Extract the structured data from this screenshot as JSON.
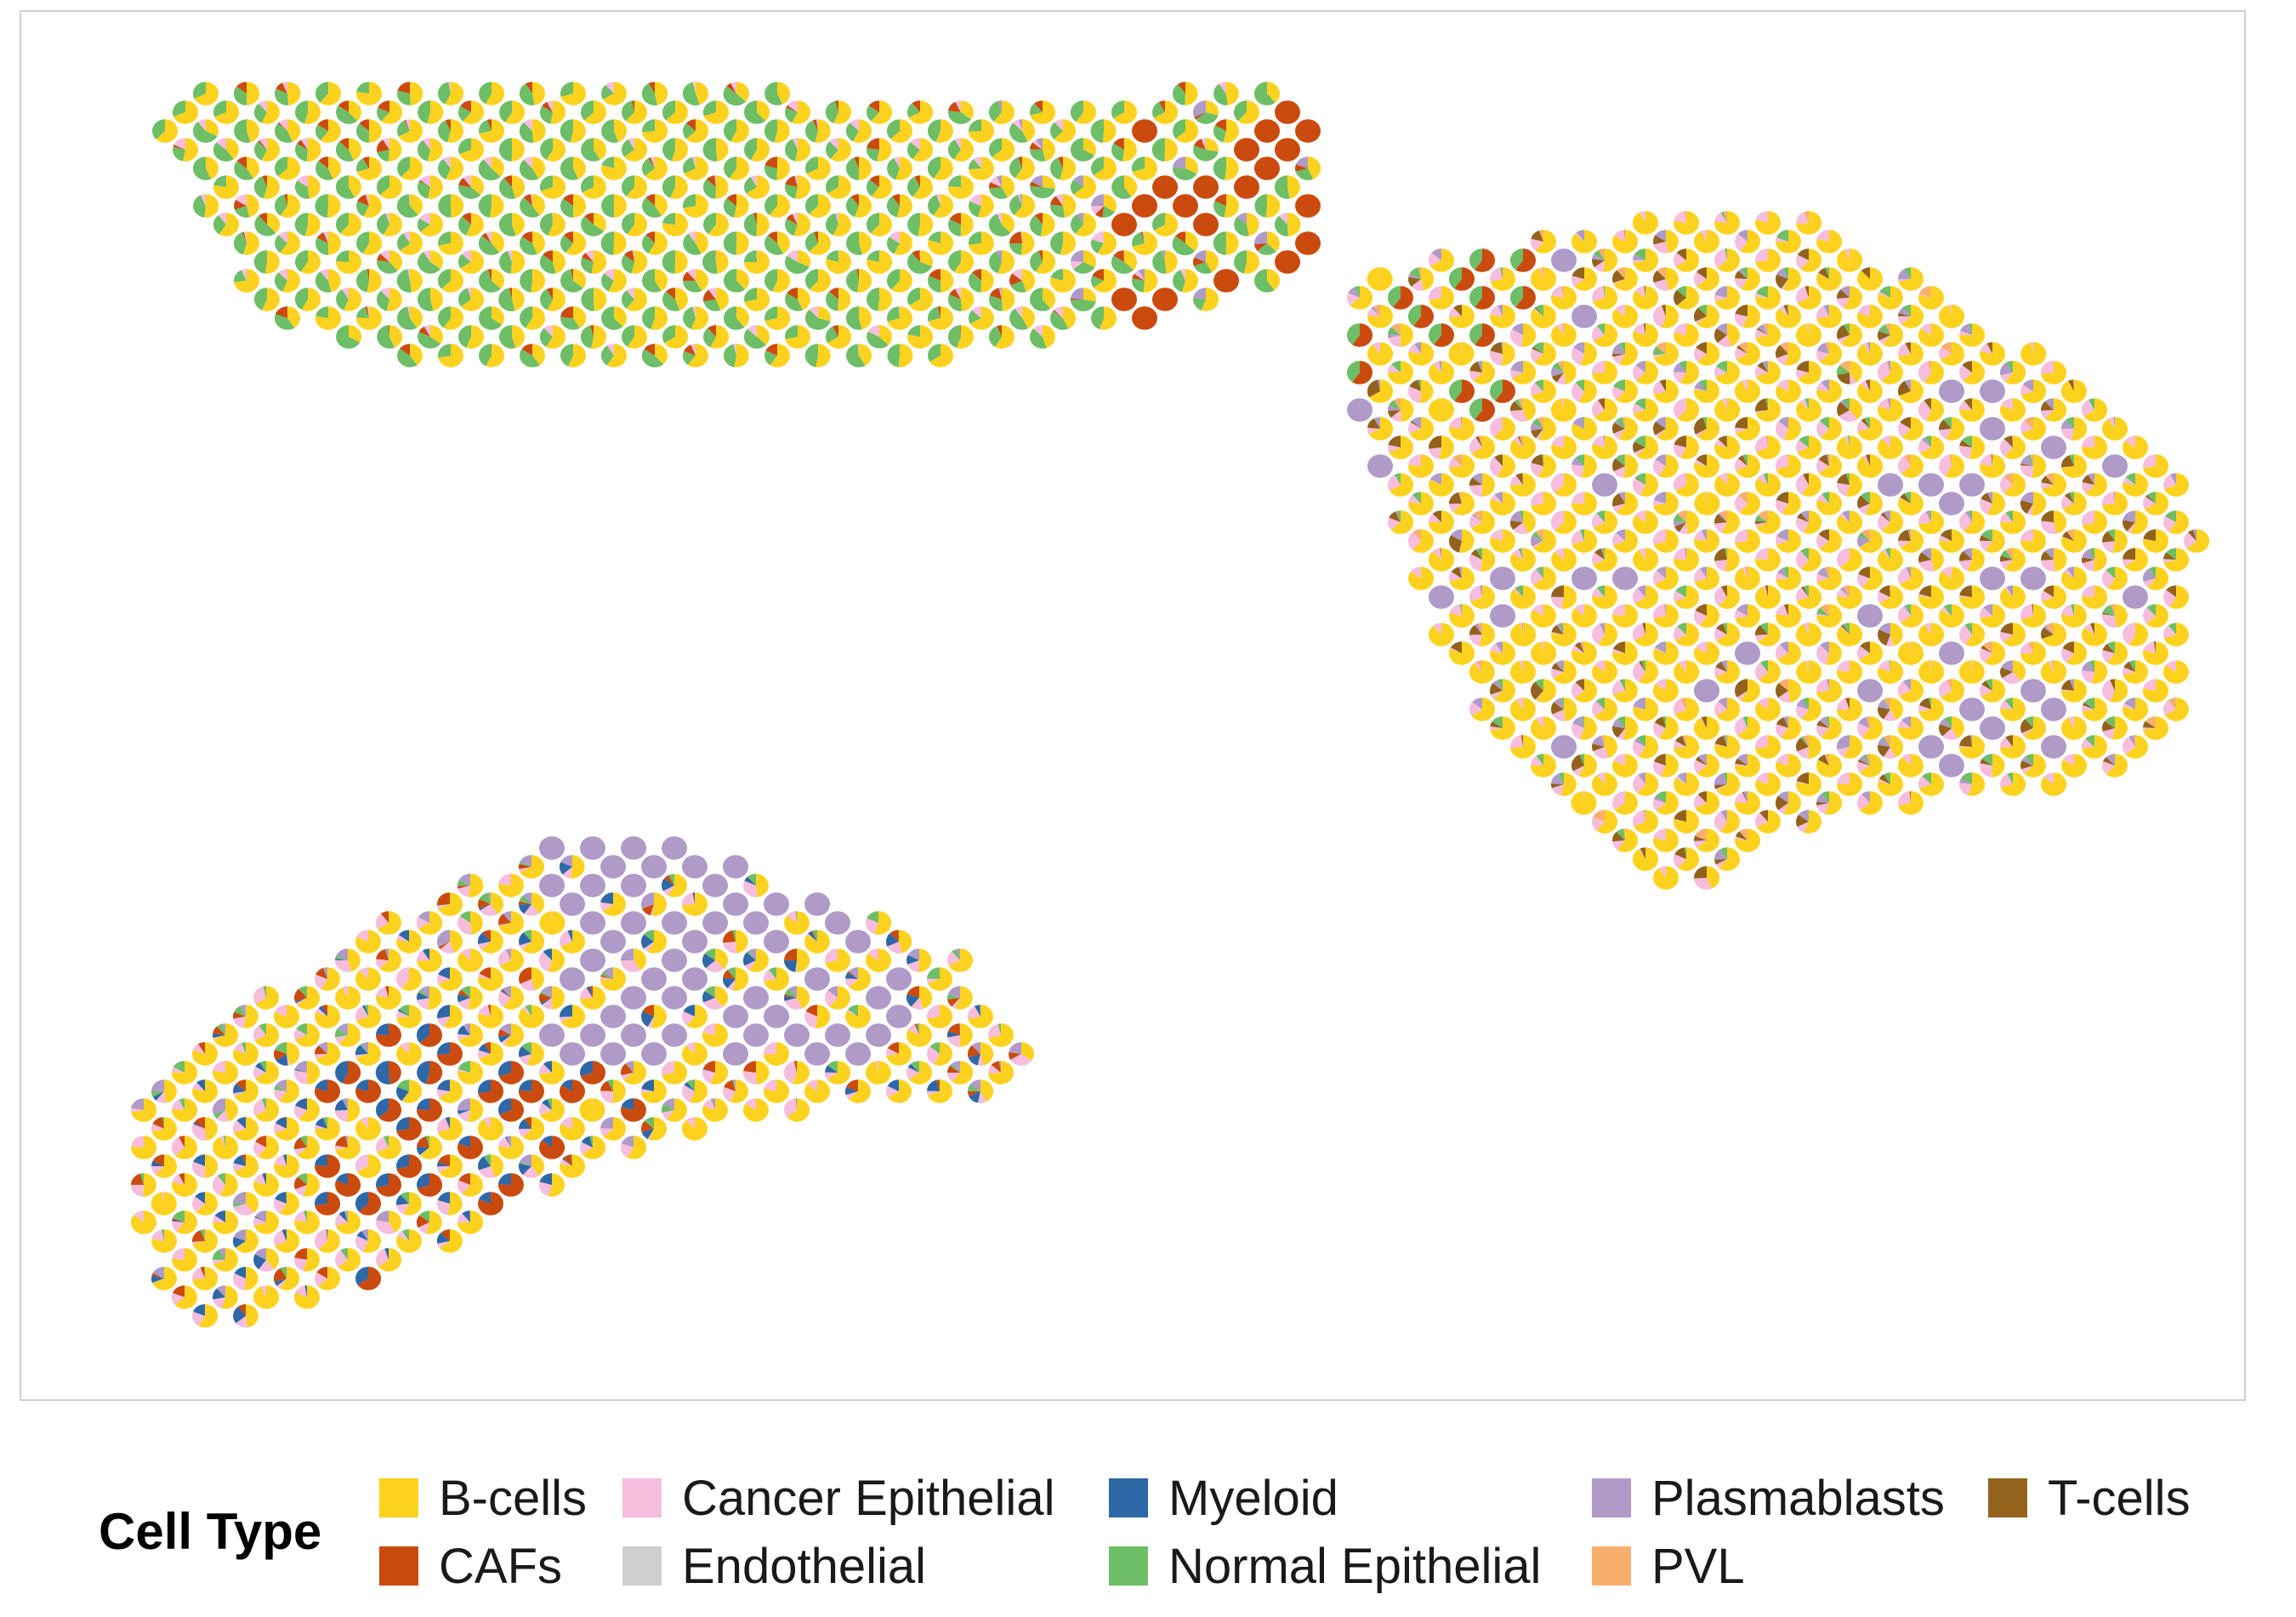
{
  "chart_data": {
    "type": "scatter",
    "subtype": "scatterpie",
    "title": "",
    "xlabel": "",
    "ylabel": "",
    "grid": false,
    "legend_position": "bottom",
    "legend_title": "Cell Type",
    "cell_types": [
      {
        "name": "B-cells",
        "color": "#FDD21E"
      },
      {
        "name": "CAFs",
        "color": "#CB4A0E"
      },
      {
        "name": "Cancer Epithelial",
        "color": "#F6BDDC"
      },
      {
        "name": "Endothelial",
        "color": "#CFCFCF"
      },
      {
        "name": "Myeloid",
        "color": "#2E68A6"
      },
      {
        "name": "Normal Epithelial",
        "color": "#6DBE66"
      },
      {
        "name": "Plasmablasts",
        "color": "#AF9AC8"
      },
      {
        "name": "PVL",
        "color": "#F8AF6E"
      },
      {
        "name": "T-cells",
        "color": "#93621C"
      }
    ],
    "tissue_regions": [
      {
        "position": "top-left",
        "dominant": [
          "B-cells",
          "Normal Epithelial"
        ],
        "spot_count_approx": 420
      },
      {
        "position": "right",
        "dominant": [
          "B-cells",
          "Cancer Epithelial",
          "T-cells",
          "Plasmablasts"
        ],
        "spot_count_approx": 620
      },
      {
        "position": "bottom-left",
        "dominant": [
          "Plasmablasts",
          "CAFs",
          "Myeloid",
          "B-cells"
        ],
        "spot_count_approx": 430
      }
    ]
  },
  "legend": {
    "title": "Cell Type",
    "items": [
      {
        "label": "B-cells",
        "color": "#FDD21E"
      },
      {
        "label": "CAFs",
        "color": "#CB4A0E"
      },
      {
        "label": "Cancer Epithelial",
        "color": "#F6BDDC"
      },
      {
        "label": "Endothelial",
        "color": "#CFCFCF"
      },
      {
        "label": "Myeloid",
        "color": "#2E68A6"
      },
      {
        "label": "Normal Epithelial",
        "color": "#6DBE66"
      },
      {
        "label": "Plasmablasts",
        "color": "#AF9AC8"
      },
      {
        "label": "PVL",
        "color": "#F8AF6E"
      },
      {
        "label": "T-cells",
        "color": "#93621C"
      }
    ]
  }
}
